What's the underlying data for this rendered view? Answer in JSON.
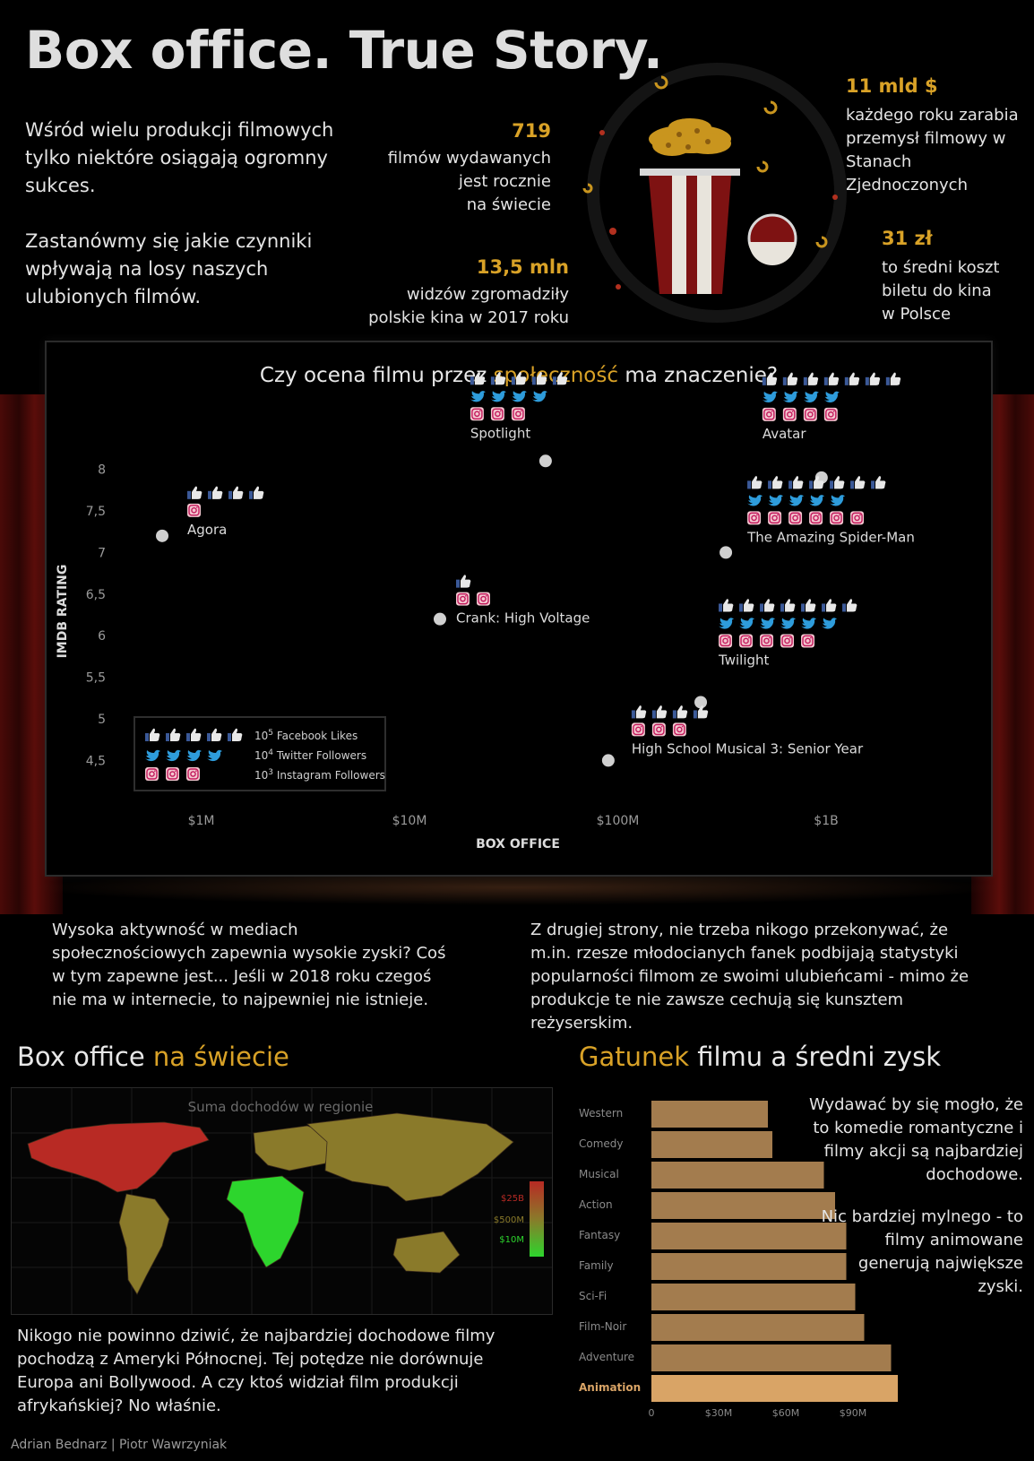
{
  "title": "Box office. True Story.",
  "intro": {
    "p1": "Wśród wielu produkcji filmowych tylko niektóre osiągają ogromny sukces.",
    "p2": "Zastanówmy się jakie czynniki wpływają na losy naszych ulubionych filmów."
  },
  "stats": {
    "s1_num": "719",
    "s1_l1": "filmów wydawanych",
    "s1_l2": "jest rocznie",
    "s1_l3": "na świecie",
    "s2_num": "13,5 mln",
    "s2_l1": "widzów zgromadziły",
    "s2_l2": "polskie kina w 2017 roku",
    "s3_num": "11 mld $",
    "s3_l1": "każdego roku zarabia",
    "s3_l2": "przemysł filmowy w",
    "s3_l3": "Stanach Zjednoczonych",
    "s4_num": "31 zł",
    "s4_l1": "to średni koszt",
    "s4_l2": "biletu do kina",
    "s4_l3": "w Polsce"
  },
  "scatter": {
    "title_a": "Czy ocena filmu przez ",
    "title_b": "społeczność",
    "title_c": " ma znaczenie?",
    "legend": {
      "fb": "Facebook Likes",
      "tw": "Twitter Followers",
      "ig": "Instagram Followers",
      "fb_base": "10",
      "fb_exp": "5",
      "tw_base": "10",
      "tw_exp": "4",
      "ig_base": "10",
      "ig_exp": "3"
    }
  },
  "chart_data": [
    {
      "type": "scatter",
      "title": "Czy ocena filmu przez społeczność ma znaczenie?",
      "xlabel": "BOX OFFICE",
      "ylabel": "IMDB RATING",
      "x_scale": "log",
      "x_ticks": [
        {
          "v": 1000000,
          "label": "$1M"
        },
        {
          "v": 10000000,
          "label": "$10M"
        },
        {
          "v": 100000000,
          "label": "$100M"
        },
        {
          "v": 1000000000,
          "label": "$1B"
        }
      ],
      "y_ticks": [
        "4,5",
        "5",
        "5,5",
        "6",
        "6,5",
        "7",
        "7,5",
        "8"
      ],
      "xlim": [
        400000,
        2000000000
      ],
      "ylim": [
        4.3,
        8.2
      ],
      "grid": false,
      "legend_position": "bottom-left",
      "points": [
        {
          "name": "Agora",
          "x": 650000,
          "y": 7.2,
          "fb": 4,
          "tw": 0,
          "ig": 1
        },
        {
          "name": "Spotlight",
          "x": 45000000,
          "y": 8.1,
          "fb": 5,
          "tw": 4,
          "ig": 3
        },
        {
          "name": "Avatar",
          "x": 950000000,
          "y": 7.9,
          "fb": 7,
          "tw": 4,
          "ig": 4
        },
        {
          "name": "Crank: High Voltage",
          "x": 14000000,
          "y": 6.2,
          "fb": 1,
          "tw": 0,
          "ig": 2
        },
        {
          "name": "The Amazing Spider-Man",
          "x": 330000000,
          "y": 7.0,
          "fb": 7,
          "tw": 5,
          "ig": 6
        },
        {
          "name": "Twilight",
          "x": 250000000,
          "y": 5.2,
          "fb": 7,
          "tw": 6,
          "ig": 5
        },
        {
          "name": "High School Musical 3: Senior Year",
          "x": 90000000,
          "y": 4.5,
          "fb": 4,
          "tw": 0,
          "ig": 3
        }
      ]
    },
    {
      "type": "bar",
      "title": "Gatunek filmu a średni zysk",
      "orientation": "horizontal",
      "categories": [
        "Western",
        "Comedy",
        "Musical",
        "Action",
        "Fantasy",
        "Family",
        "Sci-Fi",
        "Film-Noir",
        "Adventure",
        "Animation"
      ],
      "values": [
        52,
        54,
        77,
        82,
        87,
        87,
        91,
        95,
        107,
        110
      ],
      "highlight": "Animation",
      "x_ticks": [
        "0",
        "$30M",
        "$60M",
        "$90M"
      ],
      "xlim": [
        0,
        120
      ],
      "colors": {
        "bar": "#a37c4e",
        "highlight": "#d9a466"
      }
    },
    {
      "type": "heatmap",
      "title": "Suma dochodów w regionie",
      "legend": [
        "$25B",
        "$500M",
        "$10M"
      ],
      "regions": [
        {
          "name": "North America",
          "level": "$25B"
        },
        {
          "name": "Europe",
          "level": "$500M"
        },
        {
          "name": "Asia",
          "level": "$500M"
        },
        {
          "name": "South America",
          "level": "$500M"
        },
        {
          "name": "Australia",
          "level": "$500M"
        },
        {
          "name": "Africa",
          "level": "$10M"
        }
      ],
      "colors": {
        "high": "#b82a24",
        "mid": "#8a7a2a",
        "low": "#2dd52d"
      }
    }
  ],
  "paragraphs": {
    "left": "Wysoka aktywność w mediach społecznościowych zapewnia wysokie zyski? Coś w tym zapewne jest... Jeśli w 2018 roku czegoś nie ma w internecie, to najpewniej nie istnieje.",
    "right": "Z drugiej strony, nie trzeba nikogo przekonywać, że m.in. rzesze młodocianych fanek podbijają statystyki popularności filmom ze swoimi ulubieńcami - mimo że produkcje te nie zawsze cechują się kunsztem reżyserskim."
  },
  "map_section": {
    "title_a": "Box office ",
    "title_b": "na świecie",
    "caption": "Nikogo nie powinno dziwić, że najbardziej dochodowe filmy pochodzą z Ameryki Północnej. Tej potędze nie dorównuje Europa ani Bollywood. A czy ktoś widział film produkcji afrykańskiej? No właśnie."
  },
  "genre_section": {
    "title_a": "Gatunek",
    "title_b": " filmu a średni zysk",
    "note1": "Wydawać by się mogło, że to komedie romantyczne i filmy akcji są najbardziej dochodowe.",
    "note2": "Nic bardziej mylnego - to filmy animowane generują największe zyski."
  },
  "footer": "Adrian Bednarz | Piotr Wawrzyniak"
}
